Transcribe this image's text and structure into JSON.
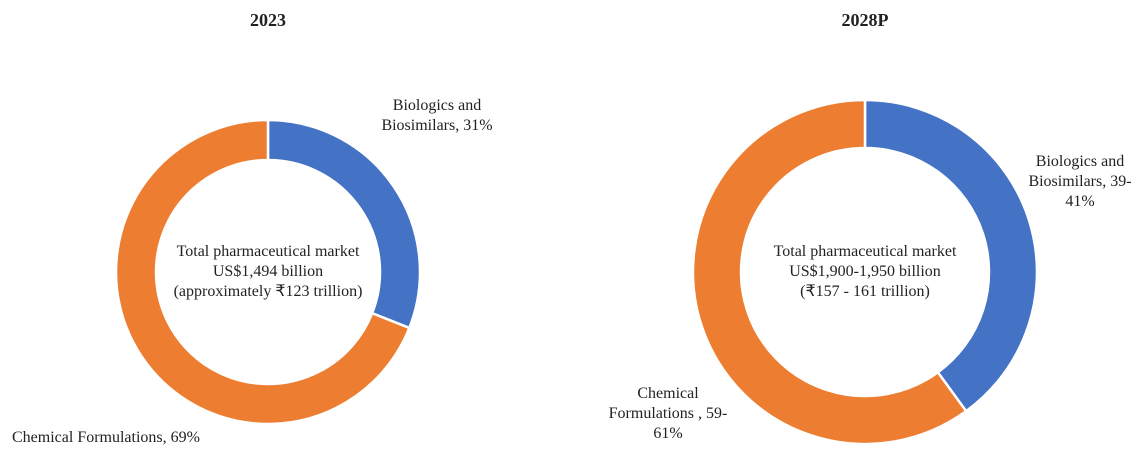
{
  "chart_data": [
    {
      "type": "donut",
      "title": "2023",
      "categories": [
        "Biologics and Biosimilars,",
        "Chemical Formulations,"
      ],
      "values": [
        31,
        69
      ],
      "value_labels": [
        "31%",
        "69%"
      ],
      "colors": [
        "#4472c4",
        "#ed7d31"
      ],
      "center_text": [
        "Total pharmaceutical market",
        "US$1,494 billion",
        "(approximately ₹123 trillion)"
      ]
    },
    {
      "type": "donut",
      "title": "2028P",
      "categories": [
        "Biologics and Biosimilars,",
        "Chemical Formulations ,"
      ],
      "values": [
        40,
        60
      ],
      "value_labels": [
        "39-41%",
        "59-61%"
      ],
      "colors": [
        "#4472c4",
        "#ed7d31"
      ],
      "center_text": [
        "Total pharmaceutical market",
        "US$1,900-1,950 billion",
        "(₹157 - 161 trillion)"
      ]
    }
  ]
}
